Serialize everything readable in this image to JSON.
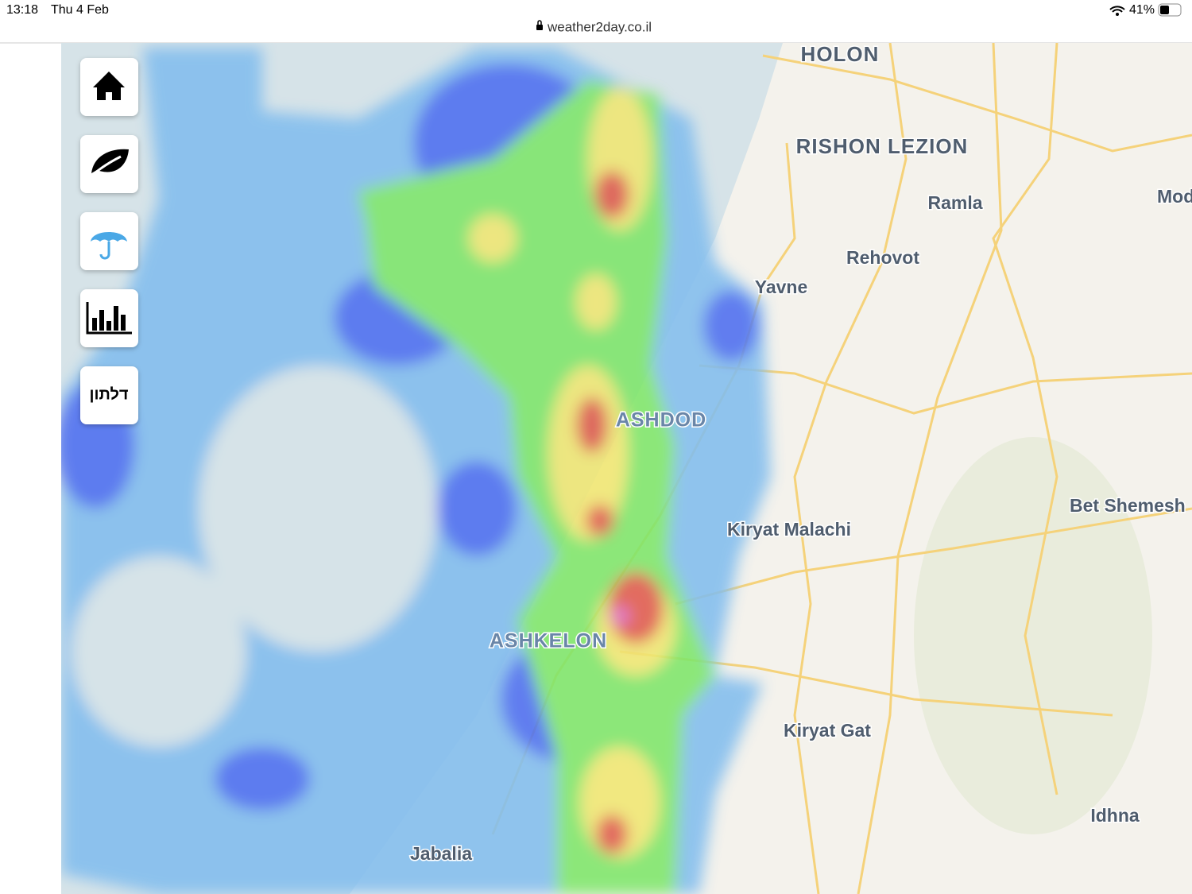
{
  "status_bar": {
    "time": "13:18",
    "date": "Thu 4 Feb",
    "url": "weather2day.co.il",
    "battery": "41%"
  },
  "sidebar": {
    "text_button": "דלתון"
  },
  "map": {
    "labels": [
      "HOLON",
      "RISHON LEZION",
      "Ramla",
      "Mod",
      "Rehovot",
      "Yavne",
      "ASHDOD",
      "Kiryat Malachi",
      "Bet Shemesh",
      "ASHKELON",
      "Kiryat Gat",
      "Idhna",
      "Jabalia"
    ]
  }
}
